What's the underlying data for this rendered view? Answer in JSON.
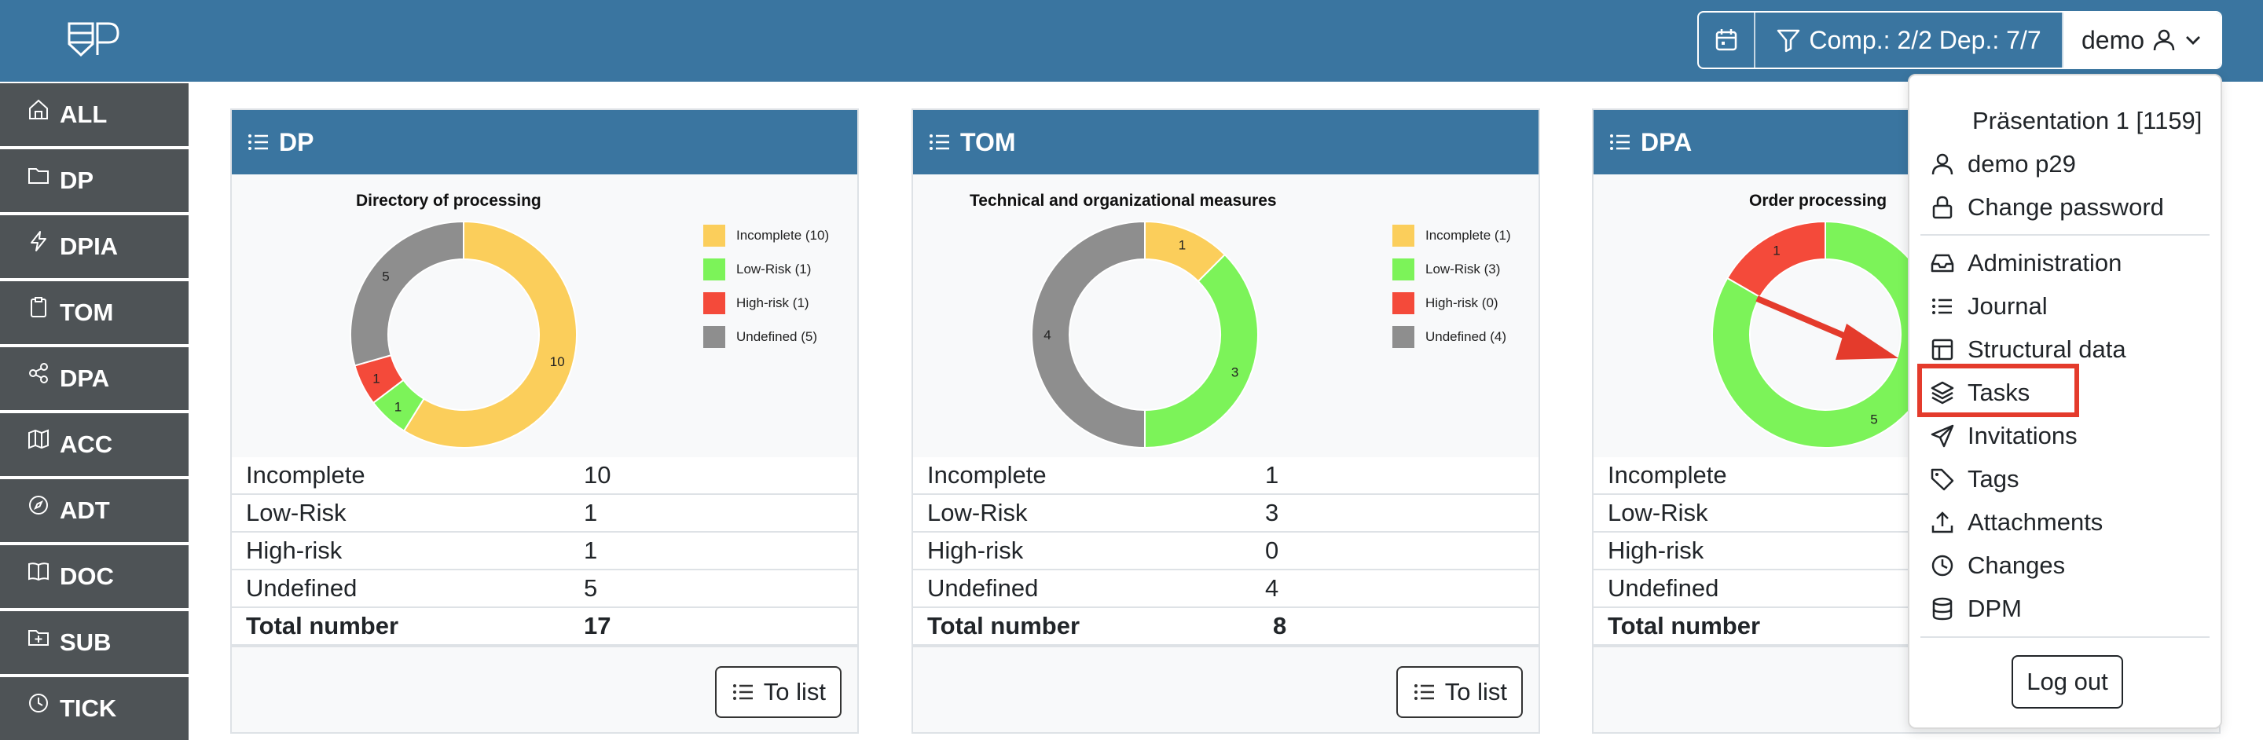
{
  "header": {
    "filter_label": "Comp.: 2/2 Dep.: 7/7",
    "user_label": "demo",
    "icons": [
      "calendar-icon",
      "filter-icon",
      "user-icon",
      "chevron-down-icon"
    ]
  },
  "sidebar": {
    "items": [
      {
        "label": "ALL",
        "icon": "home-icon"
      },
      {
        "label": "DP",
        "icon": "folder-icon"
      },
      {
        "label": "DPIA",
        "icon": "bolt-icon"
      },
      {
        "label": "TOM",
        "icon": "clipboard-icon"
      },
      {
        "label": "DPA",
        "icon": "share-icon"
      },
      {
        "label": "ACC",
        "icon": "map-icon"
      },
      {
        "label": "ADT",
        "icon": "compass-icon"
      },
      {
        "label": "DOC",
        "icon": "book-icon"
      },
      {
        "label": "SUB",
        "icon": "folder-plus-icon"
      },
      {
        "label": "TICK",
        "icon": "clock-icon"
      }
    ]
  },
  "cards": [
    {
      "title": "DP",
      "chart_title": "Directory of processing",
      "rows": [
        {
          "label": "Incomplete",
          "value": "10"
        },
        {
          "label": "Low-Risk",
          "value": "1"
        },
        {
          "label": "High-risk",
          "value": "1"
        },
        {
          "label": "Undefined",
          "value": "5"
        }
      ],
      "total_label": "Total number",
      "total_value": "17",
      "legend": [
        "Incomplete (10)",
        "Low-Risk (1)",
        "High-risk (1)",
        "Undefined (5)"
      ],
      "button_label": "To list"
    },
    {
      "title": "TOM",
      "chart_title": "Technical and organizational measures",
      "rows": [
        {
          "label": "Incomplete",
          "value": "1"
        },
        {
          "label": "Low-Risk",
          "value": "3"
        },
        {
          "label": "High-risk",
          "value": "0"
        },
        {
          "label": "Undefined",
          "value": "4"
        }
      ],
      "total_label": "Total number",
      "total_value": "8",
      "legend": [
        "Incomplete (1)",
        "Low-Risk (3)",
        "High-risk (0)",
        "Undefined (4)"
      ],
      "button_label": "To list"
    },
    {
      "title": "DPA",
      "chart_title": "Order processing",
      "rows": [
        {
          "label": "Incomplete",
          "value": ""
        },
        {
          "label": "Low-Risk",
          "value": ""
        },
        {
          "label": "High-risk",
          "value": ""
        },
        {
          "label": "Undefined",
          "value": ""
        }
      ],
      "total_label": "Total number",
      "total_value": "",
      "legend": [],
      "button_label": ""
    }
  ],
  "chart_data": [
    {
      "type": "pie",
      "title": "Directory of processing",
      "categories": [
        "Incomplete",
        "Low-Risk",
        "High-risk",
        "Undefined"
      ],
      "values": [
        10,
        1,
        1,
        5
      ],
      "colors": [
        "#fbce5b",
        "#7cf359",
        "#f44a3a",
        "#8e8e8e"
      ],
      "legend_position": "right"
    },
    {
      "type": "pie",
      "title": "Technical and organizational measures",
      "categories": [
        "Incomplete",
        "Low-Risk",
        "High-risk",
        "Undefined"
      ],
      "values": [
        1,
        3,
        0,
        4
      ],
      "colors": [
        "#fbce5b",
        "#7cf359",
        "#f44a3a",
        "#8e8e8e"
      ],
      "legend_position": "right"
    },
    {
      "type": "pie",
      "title": "Order processing",
      "categories": [
        "Low-Risk",
        "High-risk"
      ],
      "values": [
        5,
        1
      ],
      "colors": [
        "#7cf359",
        "#f44a3a"
      ],
      "legend_position": "right"
    }
  ],
  "dropdown": {
    "header": "Präsentation 1 [1159]",
    "user": "demo p29",
    "change_password": "Change password",
    "items": [
      {
        "label": "Administration",
        "icon": "inbox-icon"
      },
      {
        "label": "Journal",
        "icon": "list-icon"
      },
      {
        "label": "Structural data",
        "icon": "layout-icon"
      },
      {
        "label": "Tasks",
        "icon": "layers-icon"
      },
      {
        "label": "Invitations",
        "icon": "send-icon"
      },
      {
        "label": "Tags",
        "icon": "tag-icon"
      },
      {
        "label": "Attachments",
        "icon": "upload-icon"
      },
      {
        "label": "Changes",
        "icon": "clock-icon"
      },
      {
        "label": "DPM",
        "icon": "database-icon"
      }
    ],
    "logout": "Log out"
  },
  "colors": {
    "header_bg": "#3a75a0",
    "sidebar_bg": "#4e5356",
    "highlight": "#e43b2c"
  }
}
